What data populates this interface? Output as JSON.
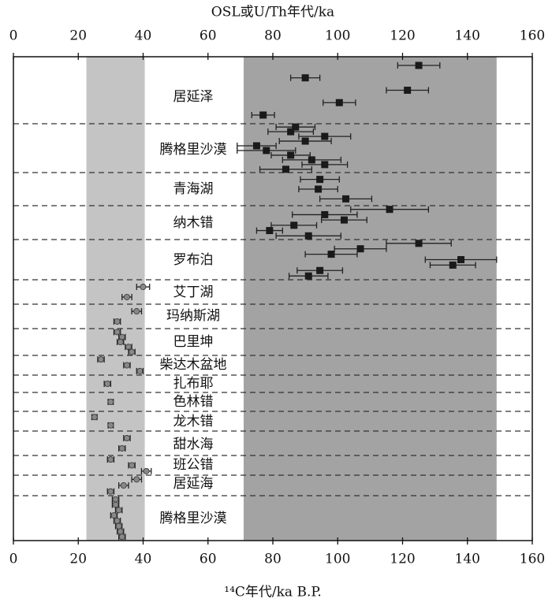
{
  "chart_data": {
    "type": "scatter",
    "title": "OSL或U/Th年代/ka",
    "xlabel": "¹⁴C年代/ka B.P.",
    "xlim": [
      0,
      160
    ],
    "xticks": [
      0,
      20,
      40,
      60,
      80,
      100,
      120,
      140,
      160
    ],
    "x2lim": [
      0,
      160
    ],
    "x2ticks": [
      0,
      20,
      40,
      60,
      80,
      100,
      120,
      140,
      160
    ],
    "shaded": [
      {
        "xlim": [
          22.5,
          40.5
        ],
        "color": "#c4c4c4"
      },
      {
        "xlim": [
          71,
          149
        ],
        "color": "#a3a3a3"
      }
    ],
    "series": [
      {
        "name": "居延泽",
        "axis": "x2",
        "color": "#1a1a1a",
        "values": [
          125,
          90,
          121.5,
          100.5,
          77
        ],
        "errors": [
          6.5,
          4.5,
          6.5,
          5,
          3.5
        ]
      },
      {
        "name": "腾格里沙漠",
        "axis": "x2",
        "color": "#1a1a1a",
        "values": [
          87,
          85.5,
          96,
          90,
          75,
          78,
          85.5,
          92,
          96,
          84
        ],
        "errors": [
          6,
          7,
          8,
          8,
          6,
          9,
          6,
          9,
          7,
          8
        ]
      },
      {
        "name": "青海湖",
        "axis": "x2",
        "color": "#1a1a1a",
        "values": [
          94.5,
          94,
          102.5
        ],
        "errors": [
          6,
          6,
          8
        ]
      },
      {
        "name": "纳木错",
        "axis": "x2",
        "color": "#1a1a1a",
        "values": [
          116,
          96,
          102,
          86.5,
          79,
          91
        ],
        "errors": [
          12,
          10,
          7,
          7,
          4,
          10
        ]
      },
      {
        "name": "罗布泊",
        "axis": "x2",
        "color": "#1a1a1a",
        "values": [
          125,
          107,
          98,
          138,
          135.5,
          94.5,
          91
        ],
        "errors": [
          10,
          8,
          8,
          11,
          7,
          7,
          6
        ]
      },
      {
        "name": "艾丁湖",
        "axis": "x",
        "color": "#888888",
        "values": [
          40,
          35
        ],
        "errors": [
          2,
          1.5
        ]
      },
      {
        "name": "玛纳斯湖",
        "axis": "x",
        "color": "#888888",
        "values": [
          38,
          32
        ],
        "errors": [
          1.5,
          1
        ]
      },
      {
        "name": "巴里坤",
        "axis": "x",
        "color": "#888888",
        "values": [
          32,
          33.5,
          33,
          35.5,
          36.5
        ],
        "errors": [
          1,
          1,
          1,
          1,
          1
        ]
      },
      {
        "name": "柴达木盆地",
        "axis": "x",
        "color": "#888888",
        "values": [
          27,
          35,
          39
        ],
        "errors": [
          1,
          1,
          1
        ]
      },
      {
        "name": "扎布耶",
        "axis": "x",
        "color": "#888888",
        "values": [
          29
        ],
        "errors": [
          1
        ]
      },
      {
        "name": "色林错",
        "axis": "x",
        "color": "#888888",
        "values": [
          30
        ],
        "errors": [
          0.8
        ]
      },
      {
        "name": "龙木错",
        "axis": "x",
        "color": "#888888",
        "values": [
          25,
          30
        ],
        "errors": [
          0.8,
          0.8
        ]
      },
      {
        "name": "甜水海",
        "axis": "x",
        "color": "#888888",
        "values": [
          35,
          33.5
        ],
        "errors": [
          1,
          1
        ]
      },
      {
        "name": "班公错",
        "axis": "x",
        "color": "#888888",
        "values": [
          30,
          36.5,
          41
        ],
        "errors": [
          1,
          1,
          1.5
        ]
      },
      {
        "name": "居延海",
        "axis": "x",
        "color": "#888888",
        "values": [
          38,
          34,
          30
        ],
        "errors": [
          1.5,
          1.5,
          1
        ]
      },
      {
        "name": "腾格里沙漠",
        "axis": "x",
        "color": "#888888",
        "values": [
          31.5,
          31.5,
          32.5,
          31,
          32,
          32.5,
          33,
          33.5
        ],
        "errors": [
          1,
          1,
          1,
          1,
          1,
          1,
          1,
          1
        ]
      }
    ]
  }
}
